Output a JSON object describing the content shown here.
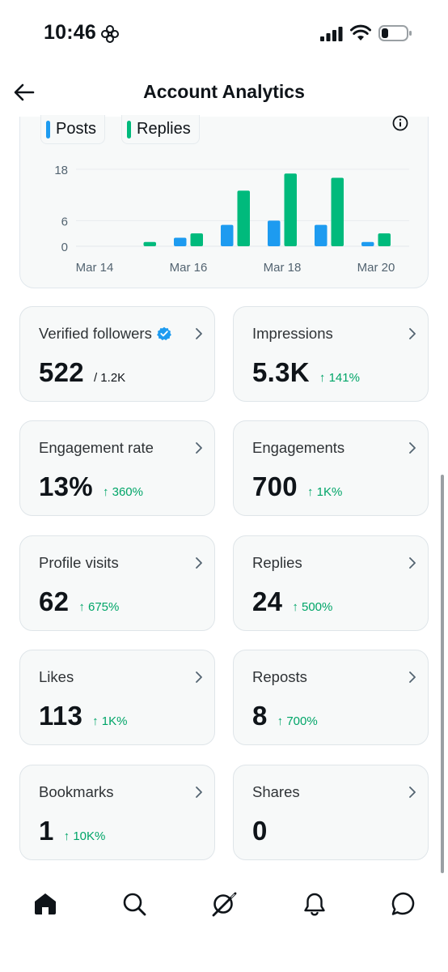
{
  "status_bar": {
    "time": "10:46",
    "focus_icon": "flower-focus-icon",
    "signal_icon": "cellular-signal-icon",
    "wifi_icon": "wifi-icon",
    "battery_icon": "battery-low-icon"
  },
  "header": {
    "back_icon": "arrow-left-icon",
    "title": "Account Analytics"
  },
  "chart": {
    "info_icon": "info-icon",
    "legend": [
      {
        "label": "Posts",
        "color": "#1d9bf0"
      },
      {
        "label": "Replies",
        "color": "#00ba7c"
      }
    ]
  },
  "chart_data": {
    "type": "bar",
    "categories": [
      "Mar 14",
      "Mar 15",
      "Mar 16",
      "Mar 17",
      "Mar 18",
      "Mar 19",
      "Mar 20"
    ],
    "x_tick_labels": [
      "Mar 14",
      "Mar 16",
      "Mar 18",
      "Mar 20"
    ],
    "y_ticks": [
      0,
      6,
      18
    ],
    "ylim": [
      0,
      18
    ],
    "grid": true,
    "legend_position": "top-left",
    "series": [
      {
        "name": "Posts",
        "color": "#1d9bf0",
        "values": [
          0,
          0,
          2,
          5,
          6,
          5,
          1
        ]
      },
      {
        "name": "Replies",
        "color": "#00ba7c",
        "values": [
          0,
          1,
          3,
          13,
          17,
          16,
          3
        ]
      }
    ]
  },
  "stats": [
    {
      "label": "Verified followers",
      "value": "522",
      "sub": "/ 1.2K",
      "change": "",
      "verified": true
    },
    {
      "label": "Impressions",
      "value": "5.3K",
      "sub": "",
      "change": "↑ 141%"
    },
    {
      "label": "Engagement rate",
      "value": "13%",
      "sub": "",
      "change": "↑ 360%"
    },
    {
      "label": "Engagements",
      "value": "700",
      "sub": "",
      "change": "↑ 1K%"
    },
    {
      "label": "Profile visits",
      "value": "62",
      "sub": "",
      "change": "↑ 675%"
    },
    {
      "label": "Replies",
      "value": "24",
      "sub": "",
      "change": "↑ 500%"
    },
    {
      "label": "Likes",
      "value": "113",
      "sub": "",
      "change": "↑ 1K%"
    },
    {
      "label": "Reposts",
      "value": "8",
      "sub": "",
      "change": "↑ 700%"
    },
    {
      "label": "Bookmarks",
      "value": "1",
      "sub": "",
      "change": "↑ 10K%"
    },
    {
      "label": "Shares",
      "value": "0",
      "sub": "",
      "change": ""
    }
  ],
  "bottom_nav": [
    {
      "name": "home",
      "icon": "home-icon",
      "active": true
    },
    {
      "name": "search",
      "icon": "search-icon"
    },
    {
      "name": "grok",
      "icon": "grok-icon"
    },
    {
      "name": "notifications",
      "icon": "bell-icon"
    },
    {
      "name": "messages",
      "icon": "message-icon"
    }
  ],
  "colors": {
    "accent_blue": "#1d9bf0",
    "accent_green": "#00ba7c",
    "positive_change": "#00a568"
  }
}
